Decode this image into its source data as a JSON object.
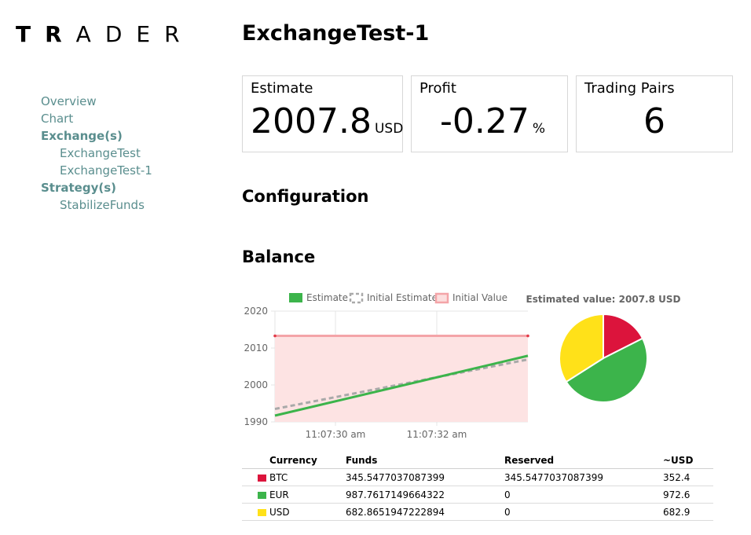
{
  "logo": {
    "bold_part": "TR",
    "light_part": "ADER"
  },
  "nav": {
    "overview": "Overview",
    "chart": "Chart",
    "exchanges_header": "Exchange(s)",
    "exchanges": [
      "ExchangeTest",
      "ExchangeTest-1"
    ],
    "strategies_header": "Strategy(s)",
    "strategies": [
      "StabilizeFunds"
    ]
  },
  "page_title": "ExchangeTest-1",
  "cards": {
    "estimate": {
      "label": "Estimate",
      "value": "2007.8",
      "unit": "USD"
    },
    "profit": {
      "label": "Profit",
      "value": "-0.27",
      "unit": "%"
    },
    "pairs": {
      "label": "Trading Pairs",
      "value": "6"
    }
  },
  "sections": {
    "configuration": "Configuration",
    "balance": "Balance"
  },
  "colors": {
    "btc": "#dc143c",
    "eur": "#3cb44b",
    "usd": "#ffe119",
    "nav": "#5a8e8e",
    "initial_value": "#f4a4a8"
  },
  "chart_data": [
    {
      "type": "line",
      "x_ticks": [
        "11:07:30 am",
        "11:07:32 am"
      ],
      "ylim": [
        1990,
        2020
      ],
      "y_ticks": [
        1990,
        2000,
        2010,
        2020
      ],
      "grid": true,
      "legend_position": "top",
      "legend": [
        "Estimate",
        "Initial Estimate",
        "Initial Value"
      ],
      "series": [
        {
          "name": "Estimate",
          "style": "solid",
          "points": [
            [
              0,
              1991.7
            ],
            [
              1,
              2007.9
            ]
          ]
        },
        {
          "name": "Initial Estimate",
          "style": "dashed",
          "points": [
            [
              0,
              1993.5
            ],
            [
              1,
              2006.9
            ]
          ]
        },
        {
          "name": "Initial Value",
          "style": "filled",
          "points": [
            [
              0,
              2013.3
            ],
            [
              1,
              2013.3
            ]
          ]
        }
      ]
    },
    {
      "type": "pie",
      "title": "Estimated value: 2007.8 USD",
      "slices": [
        {
          "label": "BTC",
          "value": 352.4
        },
        {
          "label": "EUR",
          "value": 972.6
        },
        {
          "label": "USD",
          "value": 682.9
        }
      ]
    }
  ],
  "balance_table": {
    "headers": [
      "Currency",
      "Funds",
      "Reserved",
      "~USD"
    ],
    "rows": [
      {
        "currency": "BTC",
        "funds": "345.5477037087399",
        "reserved": "345.5477037087399",
        "usd": "352.4"
      },
      {
        "currency": "EUR",
        "funds": "987.7617149664322",
        "reserved": "0",
        "usd": "972.6"
      },
      {
        "currency": "USD",
        "funds": "682.8651947222894",
        "reserved": "0",
        "usd": "682.9"
      }
    ]
  }
}
